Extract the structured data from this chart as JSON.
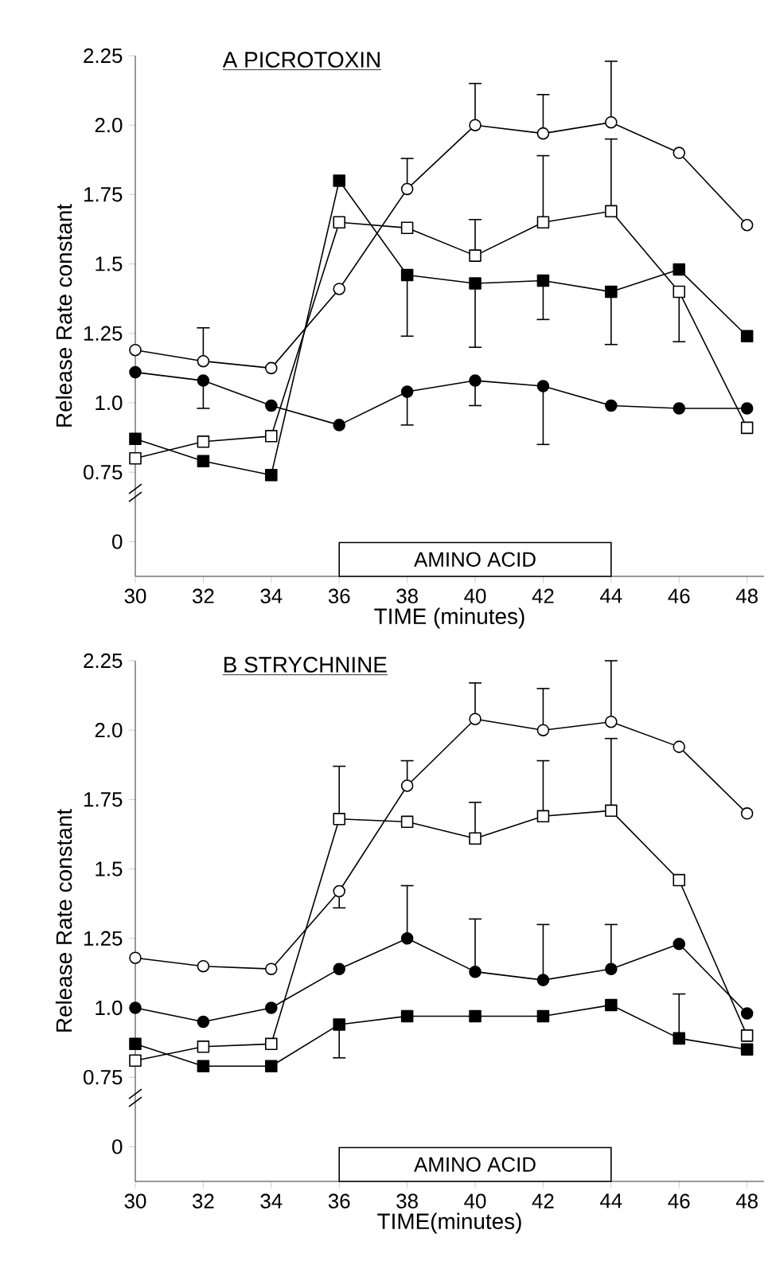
{
  "chart_data": [
    {
      "type": "line",
      "title": "A  PICROTOXIN",
      "xlabel": "TIME (minutes)",
      "ylabel": "Release Rate constant",
      "x": [
        30,
        32,
        34,
        36,
        38,
        40,
        42,
        44,
        46,
        48
      ],
      "xlim": [
        30,
        48.5
      ],
      "xticks": [
        30,
        32,
        34,
        36,
        38,
        40,
        42,
        44,
        46,
        48
      ],
      "ylim": [
        0.375,
        2.25
      ],
      "yticks": [
        {
          "value": 0.5,
          "label": "0"
        },
        0.75,
        {
          "value": 1,
          "label": "1.0"
        },
        1.25,
        1.5,
        1.75,
        {
          "value": 2,
          "label": "2.0"
        },
        2.25
      ],
      "grid": false,
      "line_style": "solid",
      "bands": [
        {
          "axis": "x",
          "from": 36,
          "to": 44,
          "label": "AMINO ACID",
          "color": "#ffffff"
        }
      ],
      "series": [
        {
          "color": "#ffffff",
          "marker": "circle",
          "values": [
            1.19,
            1.15,
            1.125,
            1.41,
            1.77,
            2.0,
            1.97,
            2.01,
            1.9,
            1.64
          ],
          "errors": [
            null,
            [
              1.15,
              1.27
            ],
            null,
            null,
            [
              1.77,
              1.88
            ],
            [
              2.0,
              2.15
            ],
            [
              1.97,
              2.11
            ],
            [
              2.01,
              2.23
            ],
            null,
            null
          ]
        },
        {
          "color": "#ffffff",
          "marker": "square",
          "values": [
            0.8,
            0.86,
            0.88,
            1.65,
            1.63,
            1.53,
            1.65,
            1.69,
            1.4,
            0.91
          ],
          "errors": [
            null,
            null,
            null,
            null,
            null,
            [
              1.53,
              1.66
            ],
            [
              1.65,
              1.89
            ],
            [
              1.69,
              1.95
            ],
            [
              1.22,
              1.4
            ],
            null
          ]
        },
        {
          "color": "#000000",
          "marker": "square",
          "values": [
            0.87,
            0.79,
            0.74,
            1.8,
            1.46,
            1.43,
            1.44,
            1.4,
            1.48,
            1.24
          ],
          "errors": [
            null,
            null,
            null,
            null,
            [
              1.24,
              1.46
            ],
            [
              1.2,
              1.43
            ],
            [
              1.3,
              1.44
            ],
            [
              1.21,
              1.4
            ],
            null,
            null
          ]
        },
        {
          "color": "#000000",
          "marker": "circle",
          "values": [
            1.11,
            1.08,
            0.99,
            0.92,
            1.04,
            1.08,
            1.06,
            0.99,
            0.98,
            0.98
          ],
          "errors": [
            null,
            [
              0.98,
              1.08
            ],
            null,
            null,
            [
              0.92,
              1.04
            ],
            [
              0.99,
              1.08
            ],
            [
              0.85,
              1.06
            ],
            null,
            null,
            null
          ]
        }
      ]
    },
    {
      "type": "line",
      "title": "B  STRYCHNINE",
      "xlabel": "TIME(minutes)",
      "ylabel": "Release Rate constant",
      "x": [
        30,
        32,
        34,
        36,
        38,
        40,
        42,
        44,
        46,
        48
      ],
      "xlim": [
        30,
        48.5
      ],
      "xticks": [
        30,
        32,
        34,
        36,
        38,
        40,
        42,
        44,
        46,
        48
      ],
      "ylim": [
        0.375,
        2.25
      ],
      "yticks": [
        {
          "value": 0.5,
          "label": "0"
        },
        0.75,
        {
          "value": 1,
          "label": "1.0"
        },
        1.25,
        1.5,
        1.75,
        {
          "value": 2,
          "label": "2.0"
        },
        2.25
      ],
      "grid": false,
      "line_style": "solid",
      "bands": [
        {
          "axis": "x",
          "from": 36,
          "to": 44,
          "label": "AMINO ACID",
          "color": "#ffffff"
        }
      ],
      "series": [
        {
          "color": "#ffffff",
          "marker": "circle",
          "values": [
            1.18,
            1.15,
            1.14,
            1.42,
            1.8,
            2.04,
            2.0,
            2.03,
            1.94,
            1.7
          ],
          "errors": [
            null,
            null,
            null,
            [
              1.36,
              1.42
            ],
            [
              1.8,
              1.89
            ],
            [
              2.04,
              2.17
            ],
            [
              2.0,
              2.15
            ],
            [
              2.03,
              2.25
            ],
            null,
            null
          ]
        },
        {
          "color": "#ffffff",
          "marker": "square",
          "values": [
            0.81,
            0.86,
            0.87,
            1.68,
            1.67,
            1.61,
            1.69,
            1.71,
            1.46,
            0.9
          ],
          "errors": [
            null,
            null,
            null,
            [
              1.68,
              1.87
            ],
            null,
            [
              1.61,
              1.74
            ],
            [
              1.69,
              1.89
            ],
            [
              1.71,
              1.97
            ],
            null,
            null
          ]
        },
        {
          "color": "#000000",
          "marker": "circle",
          "values": [
            1.0,
            0.95,
            1.0,
            1.14,
            1.25,
            1.13,
            1.1,
            1.14,
            1.23,
            0.98
          ],
          "errors": [
            null,
            null,
            null,
            null,
            [
              1.25,
              1.44
            ],
            [
              1.13,
              1.32
            ],
            [
              1.1,
              1.3
            ],
            [
              1.14,
              1.3
            ],
            null,
            null
          ]
        },
        {
          "color": "#000000",
          "marker": "square",
          "values": [
            0.87,
            0.79,
            0.79,
            0.94,
            0.97,
            0.97,
            0.97,
            1.01,
            0.89,
            0.85
          ],
          "errors": [
            null,
            null,
            null,
            [
              0.82,
              0.94
            ],
            null,
            null,
            null,
            null,
            [
              0.89,
              1.05
            ],
            null
          ]
        }
      ]
    }
  ]
}
